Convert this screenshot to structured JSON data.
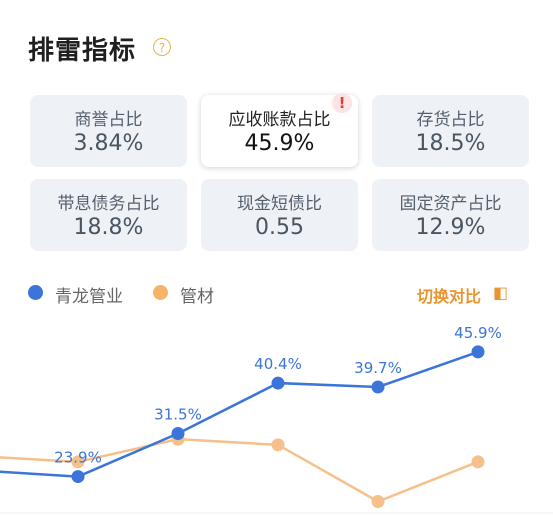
{
  "header": {
    "title": "排雷指标",
    "help_icon": "question-icon"
  },
  "metrics": [
    {
      "label": "商誉占比",
      "value": "3.84%",
      "selected": false
    },
    {
      "label": "应收账款占比",
      "value": "45.9%",
      "selected": true,
      "alert": "!"
    },
    {
      "label": "存货占比",
      "value": "18.5%",
      "selected": false
    },
    {
      "label": "带息债务占比",
      "value": "18.8%",
      "selected": false
    },
    {
      "label": "现金短债比",
      "value": "0.55",
      "selected": false
    },
    {
      "label": "固定资产占比",
      "value": "12.9%",
      "selected": false
    }
  ],
  "legend": {
    "series1": {
      "label": "青龙管业",
      "color": "#3b75d9"
    },
    "series2": {
      "label": "管材",
      "color": "#f5b46a"
    }
  },
  "switch_button": {
    "label": "切换对比",
    "icon": "switch-icon"
  },
  "chart_data": {
    "type": "line",
    "series": [
      {
        "name": "青龙管业",
        "color": "#3b75d9",
        "values": [
          null,
          23.9,
          31.5,
          40.4,
          39.7,
          45.9
        ],
        "labels": [
          "",
          "23.9%",
          "31.5%",
          "40.4%",
          "39.7%",
          "45.9%"
        ]
      },
      {
        "name": "管材",
        "color": "#f5c08a",
        "values": [
          null,
          26.5,
          30.5,
          29.5,
          19.5,
          26.5
        ]
      }
    ],
    "ylim": [
      18,
      48
    ],
    "grid": false,
    "legend_position": "top-left"
  }
}
